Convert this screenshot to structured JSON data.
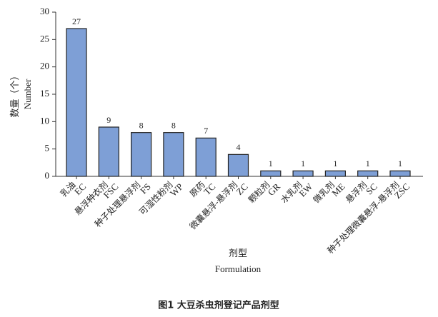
{
  "chart_data": {
    "type": "bar",
    "title": "图1 大豆杀虫剂登记产品剂型",
    "y_label": "数量（个）",
    "y_label_en": "Number",
    "x_label": "剂型",
    "x_label_en": "Formulation",
    "categories": [
      "乳油",
      "悬浮种衣剂",
      "种子处理悬浮剂",
      "可湿性粉剂",
      "原药",
      "微囊悬浮-悬浮剂",
      "颗粒剂",
      "水乳剂",
      "微乳剂",
      "悬浮剂",
      "种子处理微囊悬浮-悬浮剂"
    ],
    "category_codes": [
      "EC",
      "FSC",
      "FS",
      "WP",
      "TC",
      "ZC",
      "GR",
      "EW",
      "ME",
      "SC",
      "ZSC"
    ],
    "values": [
      27,
      9,
      8,
      8,
      7,
      4,
      1,
      1,
      1,
      1,
      1
    ],
    "color": "#7e9fd6",
    "ylim": [
      0,
      30
    ],
    "yticks": [
      0,
      5,
      10,
      15,
      20,
      25,
      30
    ]
  }
}
